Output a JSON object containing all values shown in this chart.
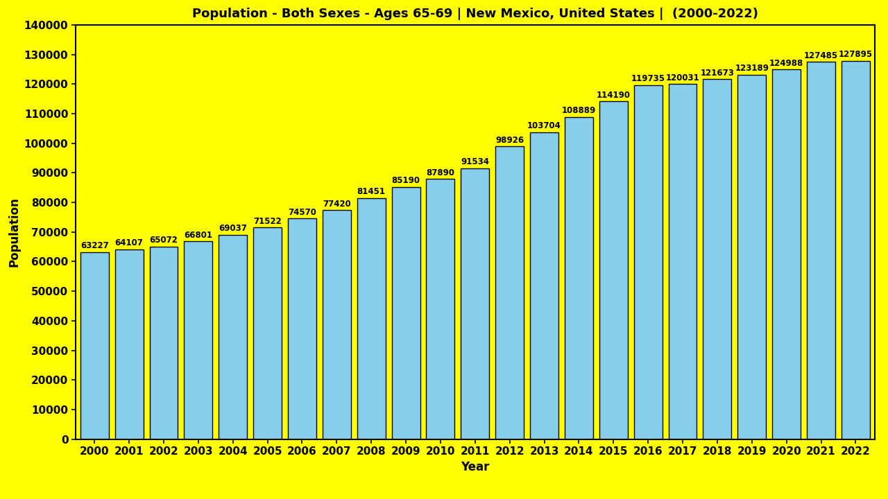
{
  "title": "Population - Both Sexes - Ages 65-69 | New Mexico, United States |  (2000-2022)",
  "xlabel": "Year",
  "ylabel": "Population",
  "background_color": "#FFFF00",
  "bar_color": "#87CEEB",
  "bar_edge_color": "#000000",
  "years": [
    2000,
    2001,
    2002,
    2003,
    2004,
    2005,
    2006,
    2007,
    2008,
    2009,
    2010,
    2011,
    2012,
    2013,
    2014,
    2015,
    2016,
    2017,
    2018,
    2019,
    2020,
    2021,
    2022
  ],
  "values": [
    63227,
    64107,
    65072,
    66801,
    69037,
    71522,
    74570,
    77420,
    81451,
    85190,
    87890,
    91534,
    98926,
    103704,
    108889,
    114190,
    119735,
    120031,
    121673,
    123189,
    124988,
    127485,
    127895
  ],
  "ylim": [
    0,
    140000
  ],
  "yticks": [
    0,
    10000,
    20000,
    30000,
    40000,
    50000,
    60000,
    70000,
    80000,
    90000,
    100000,
    110000,
    120000,
    130000,
    140000
  ],
  "title_fontsize": 13,
  "label_fontsize": 12,
  "tick_fontsize": 11,
  "value_fontsize": 8.5,
  "bar_width": 0.82
}
